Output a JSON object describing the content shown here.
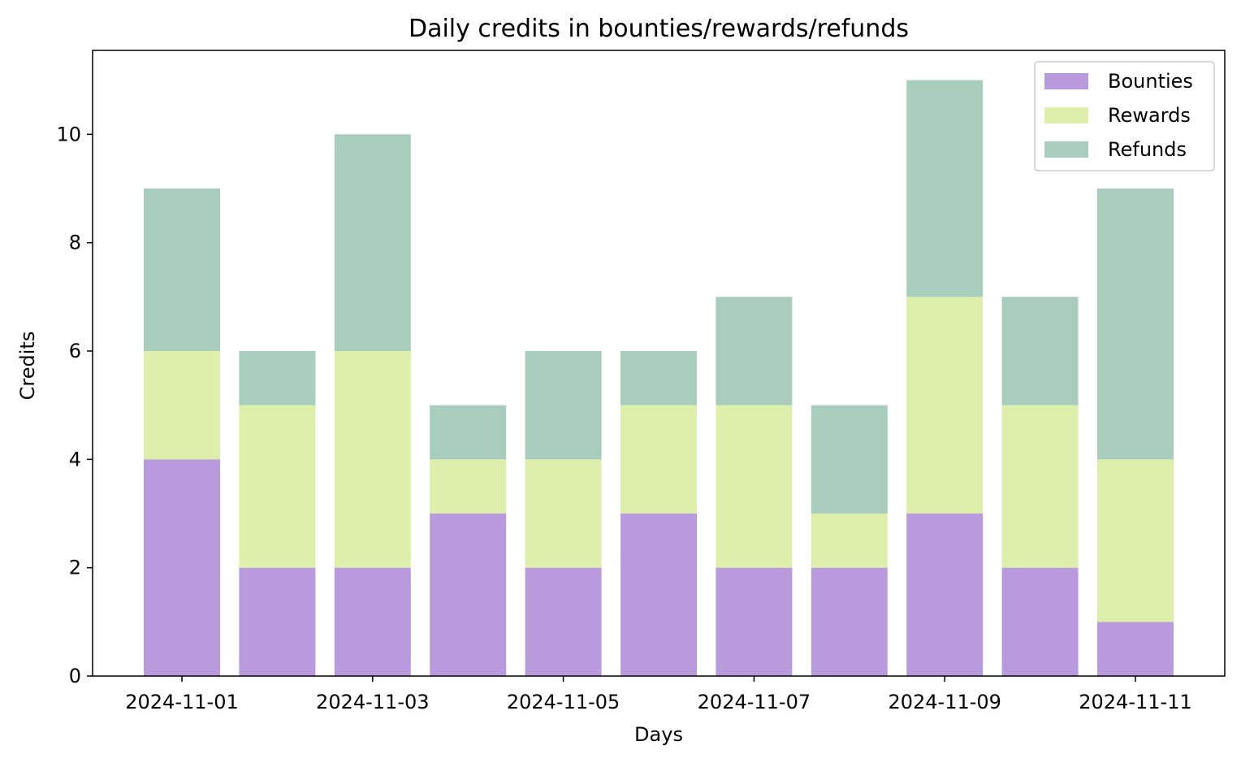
{
  "chart_data": {
    "type": "bar",
    "stacked": true,
    "title": "Daily credits in bounties/rewards/refunds",
    "xlabel": "Days",
    "ylabel": "Credits",
    "categories": [
      "2024-11-01",
      "2024-11-02",
      "2024-11-03",
      "2024-11-04",
      "2024-11-05",
      "2024-11-06",
      "2024-11-07",
      "2024-11-08",
      "2024-11-09",
      "2024-11-10",
      "2024-11-11"
    ],
    "x_ticks": [
      "2024-11-01",
      "2024-11-03",
      "2024-11-05",
      "2024-11-07",
      "2024-11-09",
      "2024-11-11"
    ],
    "y_ticks": [
      0,
      2,
      4,
      6,
      8,
      10
    ],
    "ylim": [
      0,
      11.55
    ],
    "grid": false,
    "legend_position": "top-right",
    "series": [
      {
        "name": "Bounties",
        "color": "#b99adc",
        "values": [
          4,
          2,
          2,
          3,
          2,
          3,
          2,
          2,
          3,
          2,
          1
        ]
      },
      {
        "name": "Rewards",
        "color": "#deeeab",
        "values": [
          2,
          3,
          4,
          1,
          2,
          2,
          3,
          1,
          4,
          3,
          3
        ]
      },
      {
        "name": "Refunds",
        "color": "#a9cdbc",
        "values": [
          3,
          1,
          4,
          1,
          2,
          1,
          2,
          2,
          4,
          2,
          5
        ]
      }
    ]
  }
}
